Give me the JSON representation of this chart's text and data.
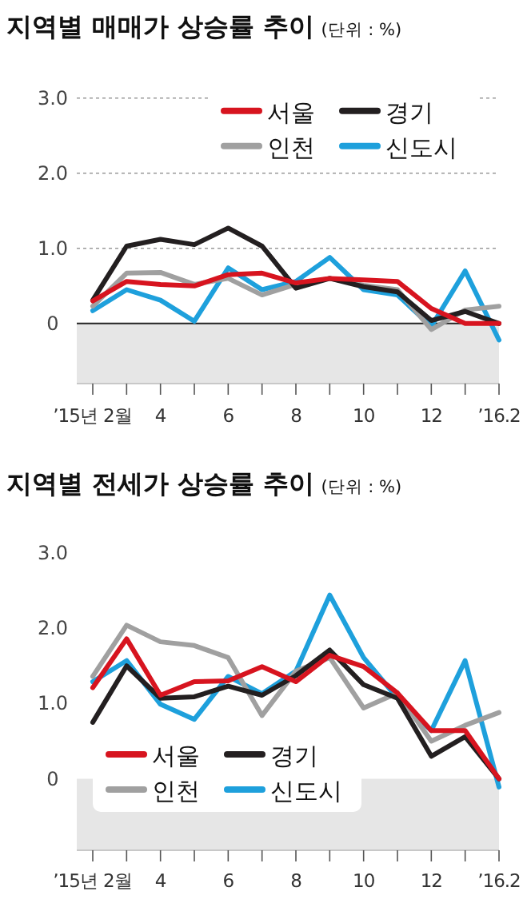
{
  "chart_data": [
    {
      "type": "line",
      "title": "지역별 매매가 상승률 추이",
      "subtitle": "(단위 : %)",
      "categories": [
        "’15년 2월",
        null,
        "4",
        null,
        "6",
        null,
        "8",
        null,
        "10",
        null,
        "12",
        null,
        "’16.2"
      ],
      "series": [
        {
          "name": "서울",
          "color": "#d7141f",
          "values": [
            0.3,
            0.56,
            0.52,
            0.5,
            0.65,
            0.67,
            0.54,
            0.6,
            0.58,
            0.56,
            0.2,
            0.0,
            0.0
          ]
        },
        {
          "name": "경기",
          "color": "#231f20",
          "values": [
            0.31,
            1.03,
            1.12,
            1.05,
            1.27,
            1.03,
            0.47,
            0.6,
            0.49,
            0.42,
            0.04,
            0.16,
            0.0
          ]
        },
        {
          "name": "인천",
          "color": "#a0a0a0",
          "values": [
            0.23,
            0.67,
            0.68,
            0.52,
            0.6,
            0.38,
            0.52,
            0.6,
            0.51,
            0.45,
            -0.08,
            0.18,
            0.23
          ]
        },
        {
          "name": "신도시",
          "color": "#1ea0dc",
          "values": [
            0.17,
            0.45,
            0.31,
            0.03,
            0.74,
            0.45,
            0.56,
            0.88,
            0.45,
            0.38,
            -0.04,
            0.7,
            -0.22
          ]
        }
      ],
      "ylim": [
        -0.8,
        3.0
      ],
      "yticks": [
        0,
        {
          "value": 1,
          "label": "1.0"
        },
        {
          "value": 2,
          "label": "2.0"
        },
        {
          "value": 3,
          "label": "3.0"
        }
      ],
      "bands": [
        {
          "axis": "y",
          "from": -0.8,
          "to": 0,
          "color": "#e6e6e6"
        }
      ],
      "grid": "y",
      "legend": "top right",
      "line_style": "solid",
      "marker": "none"
    },
    {
      "type": "line",
      "title": "지역별 전세가 상승률 추이",
      "subtitle": "(단위 : %)",
      "categories": [
        "’15년 2월",
        null,
        "4",
        null,
        "6",
        null,
        "8",
        null,
        "10",
        null,
        "12",
        null,
        "’16.2"
      ],
      "series": [
        {
          "name": "서울",
          "color": "#d7141f",
          "values": [
            1.21,
            1.86,
            1.11,
            1.29,
            1.3,
            1.49,
            1.29,
            1.64,
            1.49,
            1.14,
            0.64,
            0.64,
            0.0
          ]
        },
        {
          "name": "경기",
          "color": "#231f20",
          "values": [
            0.75,
            1.5,
            1.07,
            1.09,
            1.23,
            1.11,
            1.37,
            1.71,
            1.25,
            1.07,
            0.3,
            0.56,
            0.0
          ]
        },
        {
          "name": "인천",
          "color": "#a0a0a0",
          "values": [
            1.36,
            2.04,
            1.82,
            1.77,
            1.61,
            0.84,
            1.43,
            1.61,
            0.94,
            1.14,
            0.5,
            0.71,
            0.88
          ]
        },
        {
          "name": "신도시",
          "color": "#1ea0dc",
          "values": [
            1.29,
            1.57,
            0.99,
            0.79,
            1.36,
            1.13,
            1.43,
            2.44,
            1.61,
            1.07,
            0.64,
            1.57,
            -0.11
          ]
        }
      ],
      "ylim": [
        -0.95,
        3.0
      ],
      "yticks": [
        0,
        {
          "value": 1,
          "label": "1.0"
        },
        {
          "value": 2,
          "label": "2.0"
        },
        {
          "value": 3,
          "label": "3.0"
        }
      ],
      "bands": [
        {
          "axis": "y",
          "from": -0.95,
          "to": 0,
          "color": "#e6e6e6"
        }
      ],
      "legend": "bottom left",
      "line_style": "solid",
      "marker": "none"
    }
  ]
}
